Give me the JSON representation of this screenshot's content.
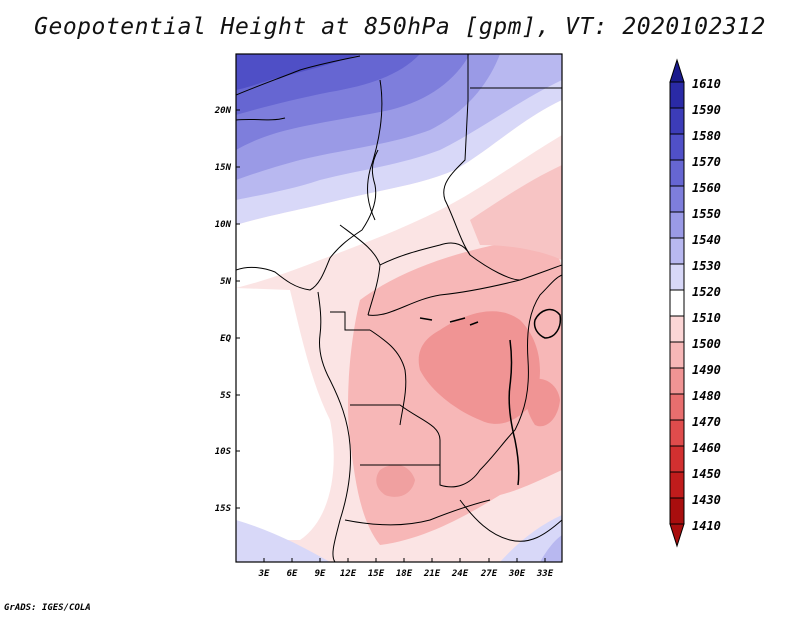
{
  "title": "Geopotential Height at 850hPa [gpm], VT: 2020102312",
  "credit": "GrADS: IGES/COLA",
  "map": {
    "lat_labels": [
      "20N",
      "15N",
      "10N",
      "5N",
      "EQ",
      "5S",
      "10S",
      "15S"
    ],
    "lon_labels": [
      "3E",
      "6E",
      "9E",
      "12E",
      "15E",
      "18E",
      "21E",
      "24E",
      "27E",
      "30E",
      "33E"
    ]
  },
  "colorbar": {
    "levels": [
      "1610",
      "1590",
      "1580",
      "1570",
      "1560",
      "1550",
      "1540",
      "1530",
      "1520",
      "1510",
      "1500",
      "1490",
      "1480",
      "1470",
      "1460",
      "1450",
      "1430",
      "1410"
    ],
    "colors": [
      "#1a1a8c",
      "#2a2aa6",
      "#3c3cb8",
      "#5050c8",
      "#6666d2",
      "#7e7edc",
      "#9a9ae6",
      "#b8b8f0",
      "#d8d8f8",
      "#ffffff",
      "#fcd6d6",
      "#f7b7b7",
      "#f09494",
      "#e86e6e",
      "#df4c4c",
      "#d23030",
      "#c01c1c",
      "#a80e0e"
    ]
  }
}
